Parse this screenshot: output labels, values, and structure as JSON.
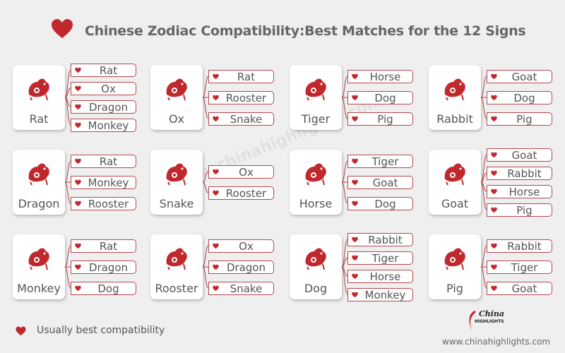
{
  "title": "Chinese Zodiac Compatibility:Best Matches for the 12 Signs",
  "colors": {
    "accent": "#c0282d",
    "background": "#efefef",
    "text": "#555555"
  },
  "watermark": "www.chinahighlights.com",
  "signs": [
    {
      "name": "Rat",
      "matches": [
        "Rat",
        "Ox",
        "Dragon",
        "Monkey"
      ]
    },
    {
      "name": "Ox",
      "matches": [
        "Rat",
        "Rooster",
        "Snake"
      ]
    },
    {
      "name": "Tiger",
      "matches": [
        "Horse",
        "Dog",
        "Pig"
      ]
    },
    {
      "name": "Rabbit",
      "matches": [
        "Goat",
        "Dog",
        "Pig"
      ]
    },
    {
      "name": "Dragon",
      "matches": [
        "Rat",
        "Monkey",
        "Rooster"
      ]
    },
    {
      "name": "Snake",
      "matches": [
        "Ox",
        "Rooster"
      ]
    },
    {
      "name": "Horse",
      "matches": [
        "Tiger",
        "Goat",
        "Dog"
      ]
    },
    {
      "name": "Goat",
      "matches": [
        "Goat",
        "Rabbit",
        "Horse",
        "Pig"
      ]
    },
    {
      "name": "Monkey",
      "matches": [
        "Rat",
        "Dragon",
        "Dog"
      ]
    },
    {
      "name": "Rooster",
      "matches": [
        "Ox",
        "Dragon",
        "Snake"
      ]
    },
    {
      "name": "Dog",
      "matches": [
        "Rabbit",
        "Tiger",
        "Horse",
        "Monkey"
      ]
    },
    {
      "name": "Pig",
      "matches": [
        "Rabbit",
        "Tiger",
        "Goat"
      ]
    }
  ],
  "legend": {
    "icon": "heart-icon",
    "label": "Usually best compatibility"
  },
  "logo": {
    "line1": "China",
    "line2": "HIGHLIGHTS"
  },
  "footer": {
    "url": "www.chinahighlights.com"
  }
}
